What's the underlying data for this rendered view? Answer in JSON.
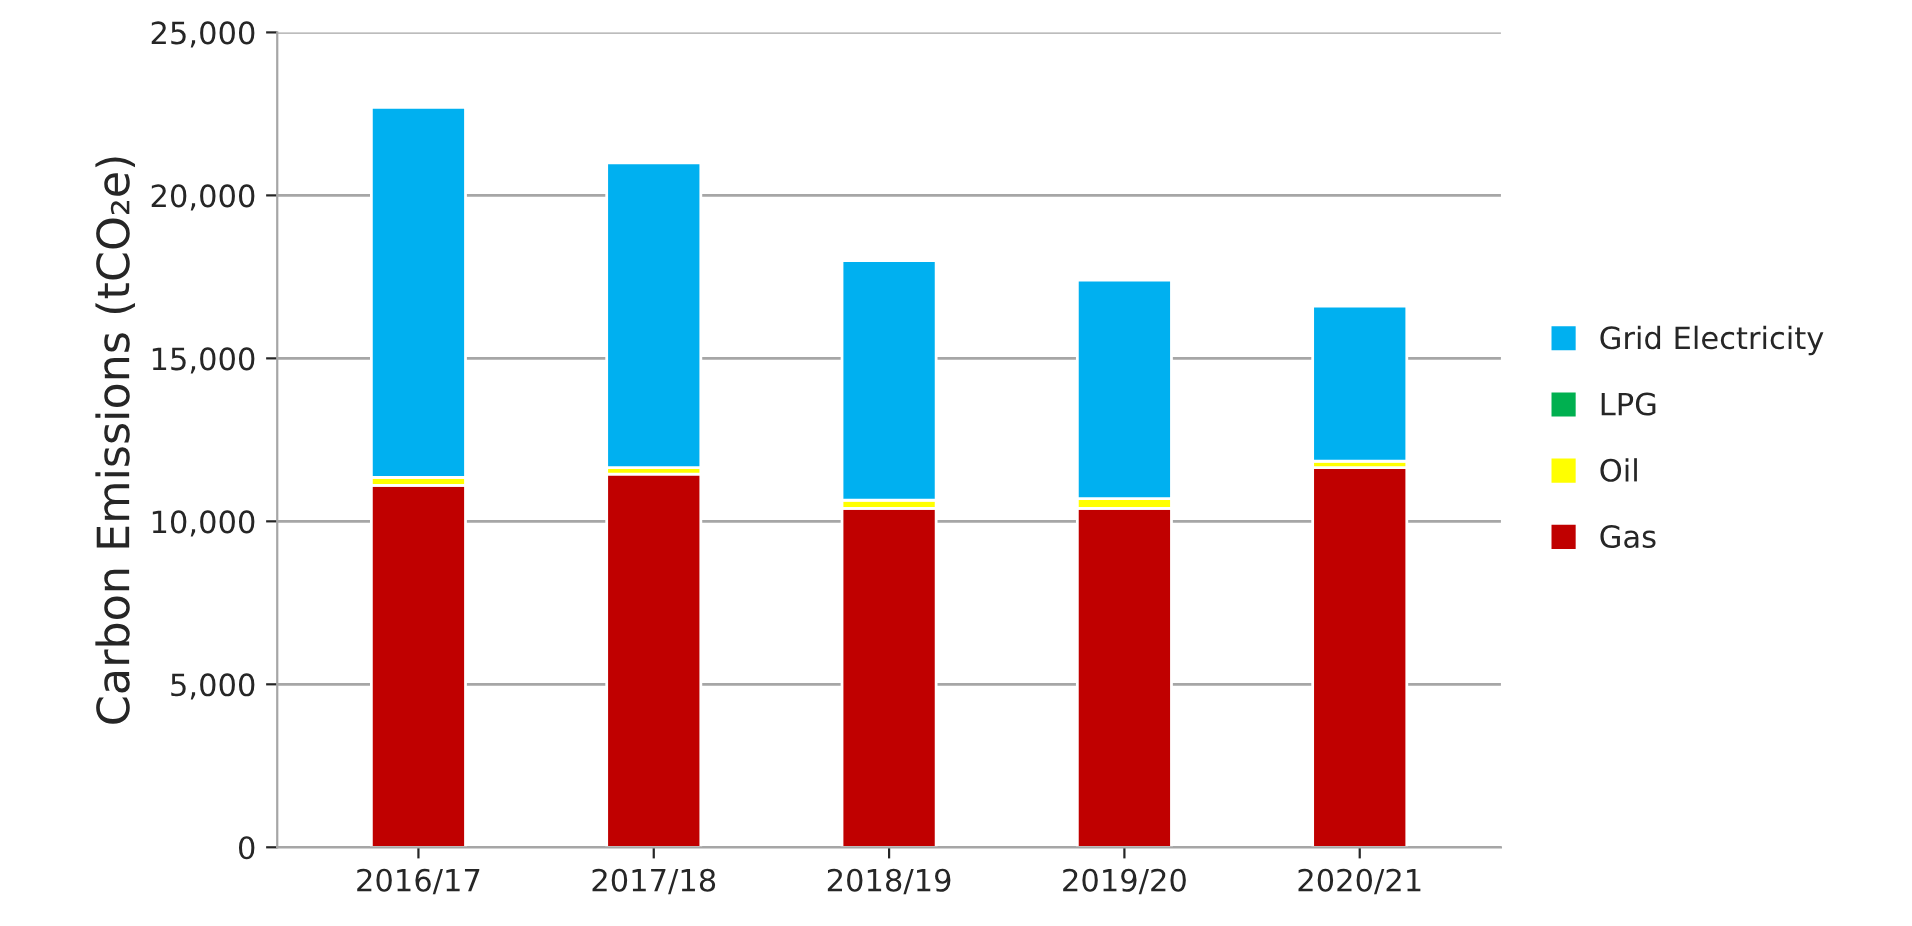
{
  "chart_data": {
    "type": "bar",
    "stacked": true,
    "ylabel": "Carbon Emissions (tCO₂e)",
    "categories": [
      "2016/17",
      "2017/18",
      "2018/19",
      "2019/20",
      "2020/21"
    ],
    "series": [
      {
        "name": "Gas",
        "color": "#c00000",
        "values": [
          11100,
          11450,
          10400,
          10400,
          11650
        ]
      },
      {
        "name": "Oil",
        "color": "#ffff00",
        "values": [
          250,
          200,
          250,
          300,
          200
        ]
      },
      {
        "name": "LPG",
        "color": "#00b050",
        "values": [
          0,
          0,
          0,
          0,
          0
        ]
      },
      {
        "name": "Grid Electricity",
        "color": "#00b0f0",
        "values": [
          11350,
          9350,
          7350,
          6700,
          4750
        ]
      }
    ],
    "ylim": [
      0,
      25000
    ],
    "yticks": [
      0,
      {
        "value": 5000,
        "label": "5,000"
      },
      {
        "value": 10000,
        "label": "10,000"
      },
      {
        "value": 15000,
        "label": "15,000"
      },
      {
        "value": 20000,
        "label": "20,000"
      },
      {
        "value": 25000,
        "label": "25,000"
      }
    ],
    "grid": "y",
    "legend": "right"
  }
}
